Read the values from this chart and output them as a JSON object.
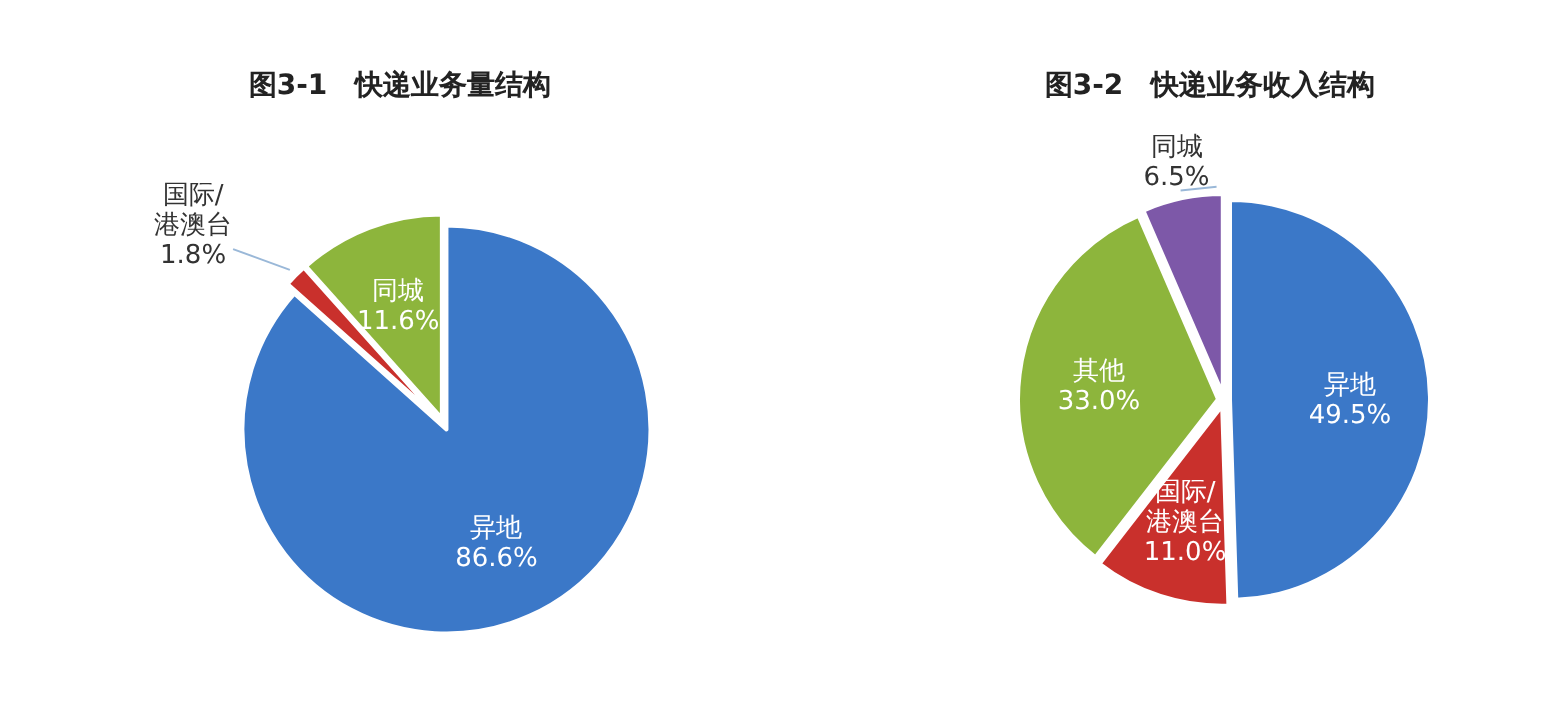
{
  "chart_data": [
    {
      "type": "pie",
      "title": "图3-1　快递业务量结构",
      "categories": [
        "异地",
        "国际/港澳台",
        "同城"
      ],
      "values": [
        86.6,
        1.8,
        11.6
      ],
      "colors": [
        "#3b78c8",
        "#c9302c",
        "#8db53c"
      ],
      "value_labels": [
        "86.6%",
        "1.8%",
        "11.6%"
      ]
    },
    {
      "type": "pie",
      "title": "图3-2　快递业务收入结构",
      "categories": [
        "异地",
        "国际/港澳台",
        "其他",
        "同城"
      ],
      "values": [
        49.5,
        11.0,
        33.0,
        6.5
      ],
      "colors": [
        "#3b78c8",
        "#c9302c",
        "#8db53c",
        "#7d58a8"
      ],
      "value_labels": [
        "49.5%",
        "11.0%",
        "33.0%",
        "6.5%"
      ]
    }
  ]
}
